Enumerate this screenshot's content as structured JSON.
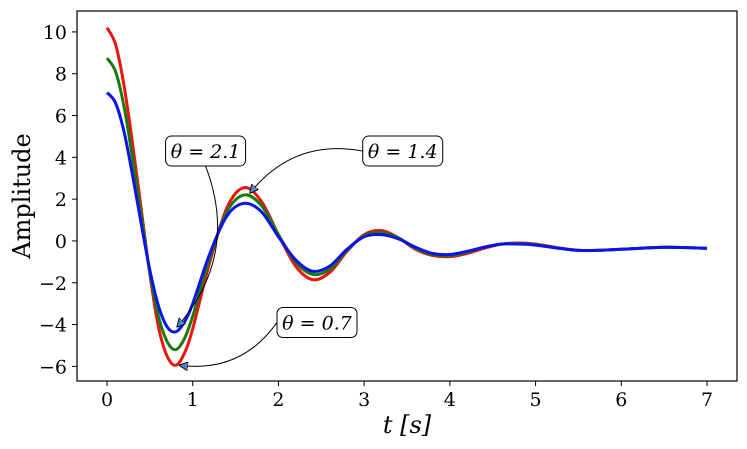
{
  "chart_data": {
    "type": "line",
    "xlabel": "t [s]",
    "ylabel": "Amplitude",
    "xlim": [
      -0.35,
      7.35
    ],
    "ylim": [
      -6.7,
      11.0
    ],
    "xticks": [
      "0",
      "1",
      "2",
      "3",
      "4",
      "5",
      "6",
      "7"
    ],
    "yticks": [
      "−6",
      "−4",
      "−2",
      "0",
      "2",
      "4",
      "6",
      "8",
      "10"
    ],
    "grid": false,
    "series": [
      {
        "color": "#e8160c",
        "x": [
          0.0,
          0.1,
          0.2,
          0.3,
          0.4,
          0.5,
          0.6,
          0.7,
          0.8,
          0.9,
          1.0,
          1.2,
          1.4,
          1.6,
          1.8,
          2.0,
          2.2,
          2.4,
          2.6,
          2.8,
          3.0,
          3.2,
          3.4,
          3.6,
          3.8,
          4.0,
          4.2,
          4.4,
          4.6,
          4.8,
          5.0,
          5.5,
          6.0,
          6.5,
          7.0
        ],
        "values": [
          10.2,
          9.4,
          7.4,
          4.6,
          1.5,
          -1.6,
          -4.1,
          -5.5,
          -5.95,
          -5.4,
          -4.2,
          -1.0,
          1.6,
          2.55,
          1.9,
          0.3,
          -1.2,
          -1.85,
          -1.5,
          -0.5,
          0.3,
          0.5,
          0.15,
          -0.4,
          -0.7,
          -0.75,
          -0.6,
          -0.35,
          -0.15,
          -0.1,
          -0.15,
          -0.45,
          -0.4,
          -0.3,
          -0.35
        ]
      },
      {
        "color": "#1a7a10",
        "x": [
          0.0,
          0.1,
          0.2,
          0.3,
          0.4,
          0.5,
          0.6,
          0.7,
          0.8,
          0.9,
          1.0,
          1.2,
          1.4,
          1.6,
          1.8,
          2.0,
          2.2,
          2.4,
          2.6,
          2.8,
          3.0,
          3.2,
          3.4,
          3.6,
          3.8,
          4.0,
          4.2,
          4.4,
          4.6,
          4.8,
          5.0,
          5.5,
          6.0,
          6.5,
          7.0
        ],
        "values": [
          8.75,
          8.1,
          6.4,
          3.9,
          1.2,
          -1.5,
          -3.6,
          -4.8,
          -5.2,
          -4.7,
          -3.6,
          -0.8,
          1.4,
          2.2,
          1.7,
          0.3,
          -1.0,
          -1.6,
          -1.35,
          -0.45,
          0.25,
          0.4,
          0.15,
          -0.35,
          -0.65,
          -0.7,
          -0.55,
          -0.3,
          -0.15,
          -0.12,
          -0.18,
          -0.45,
          -0.4,
          -0.3,
          -0.35
        ]
      },
      {
        "color": "#0a14e8",
        "x": [
          0.0,
          0.1,
          0.2,
          0.3,
          0.4,
          0.5,
          0.6,
          0.7,
          0.8,
          0.9,
          1.0,
          1.2,
          1.4,
          1.6,
          1.8,
          2.0,
          2.2,
          2.4,
          2.6,
          2.8,
          3.0,
          3.2,
          3.4,
          3.6,
          3.8,
          4.0,
          4.2,
          4.4,
          4.6,
          4.8,
          5.0,
          5.5,
          6.0,
          6.5,
          7.0
        ],
        "values": [
          7.1,
          6.6,
          5.2,
          3.1,
          0.8,
          -1.4,
          -3.1,
          -4.1,
          -4.35,
          -3.9,
          -3.0,
          -0.6,
          1.2,
          1.8,
          1.4,
          0.2,
          -0.9,
          -1.45,
          -1.2,
          -0.4,
          0.2,
          0.3,
          0.1,
          -0.3,
          -0.6,
          -0.65,
          -0.5,
          -0.3,
          -0.15,
          -0.15,
          -0.2,
          -0.45,
          -0.4,
          -0.3,
          -0.35
        ]
      }
    ],
    "annotations": [
      {
        "text": "θ = 2.1",
        "label_at": [
          1.15,
          4.3
        ],
        "arrow_to": [
          0.82,
          -4.1
        ],
        "curvature": "clockwise"
      },
      {
        "text": "θ = 1.4",
        "label_at": [
          3.45,
          4.3
        ],
        "arrow_to": [
          1.67,
          2.3
        ],
        "curvature": "counter-clockwise"
      },
      {
        "text": "θ = 0.7",
        "label_at": [
          2.45,
          -3.9
        ],
        "arrow_to": [
          0.85,
          -5.95
        ],
        "curvature": "clockwise"
      }
    ]
  }
}
